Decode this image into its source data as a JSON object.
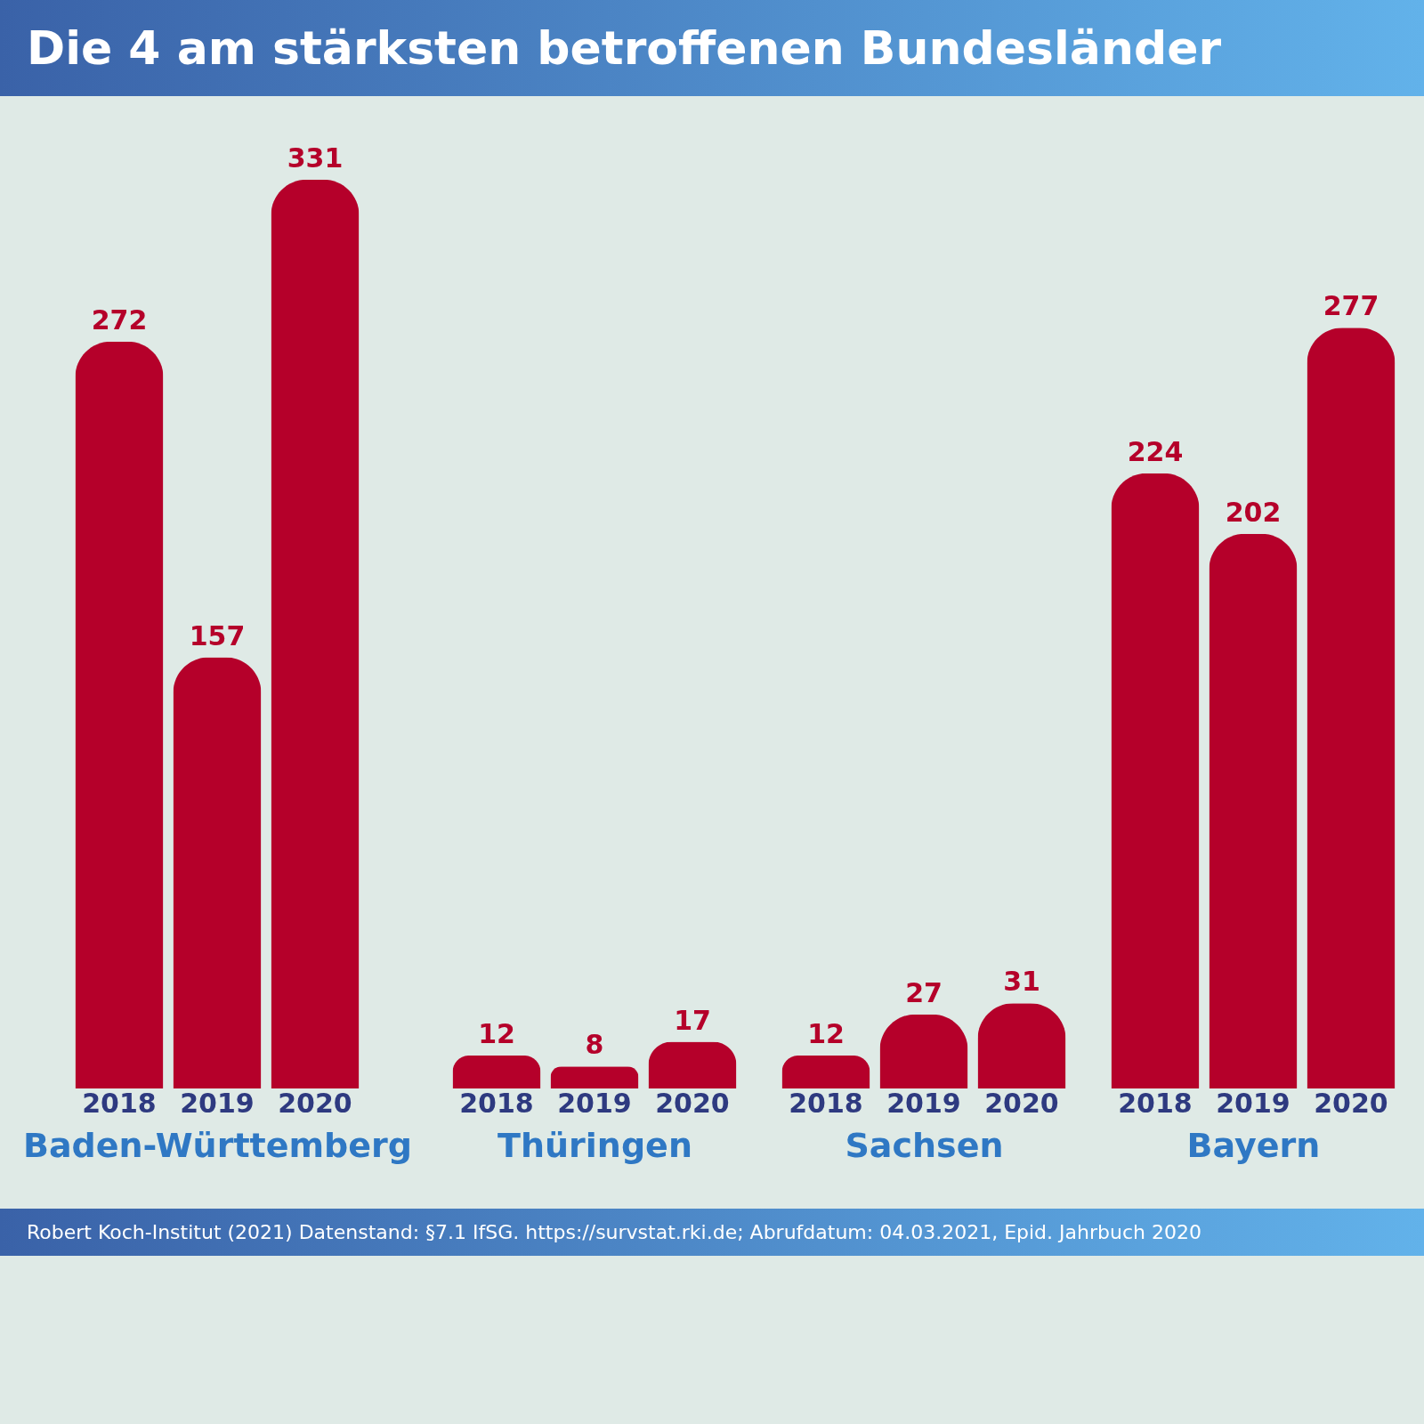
{
  "chart_data": [
    {
      "type": "bar",
      "title": "Die 4 am stärksten betroffenen Bundesländer",
      "xlabel": "Baden-Württemberg",
      "categories": [
        "2018",
        "2019",
        "2020"
      ],
      "values": [
        272,
        157,
        331
      ],
      "color": "#b5002a",
      "data_labels": true
    },
    {
      "type": "bar",
      "xlabel": "Thüringen",
      "categories": [
        "2018",
        "2019",
        "2020"
      ],
      "values": [
        12,
        8,
        17
      ],
      "color": "#b5002a",
      "data_labels": true
    },
    {
      "type": "bar",
      "xlabel": "Sachsen",
      "categories": [
        "2018",
        "2019",
        "2020"
      ],
      "values": [
        12,
        27,
        31
      ],
      "color": "#b5002a",
      "data_labels": true
    },
    {
      "type": "bar",
      "xlabel": "Bayern",
      "categories": [
        "2018",
        "2019",
        "2020"
      ],
      "values": [
        224,
        202,
        277
      ],
      "color": "#b5002a",
      "data_labels": true,
      "annotations": [
        "Robert Koch-Institut (2021) Datenstand: §7.1 IfSG. https://survstat.rki.de; Abrufdatum: 04.03.2021, Epid. Jahrbuch 2020"
      ]
    }
  ]
}
